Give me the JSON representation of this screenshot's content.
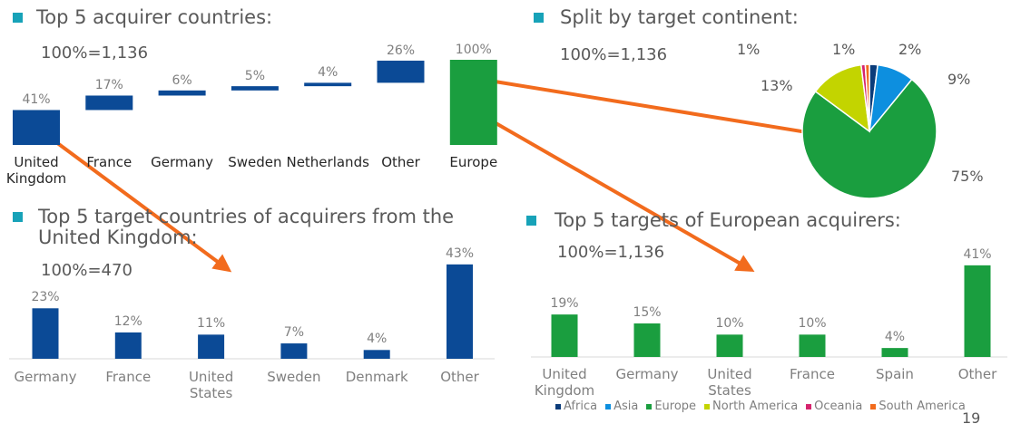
{
  "chart_data": [
    {
      "type": "waterfall",
      "title": "Top 5 acquirer countries:",
      "subtitle": "100%=1,136",
      "categories": [
        "United Kingdom",
        "France",
        "Germany",
        "Sweden",
        "Netherlands",
        "Other",
        "Europe"
      ],
      "values": [
        41,
        17,
        6,
        5,
        4,
        26,
        100
      ],
      "value_labels": [
        "41%",
        "17%",
        "6%",
        "5%",
        "4%",
        "26%",
        "100%"
      ],
      "colors": [
        "#0b4a96",
        "#0b4a96",
        "#0b4a96",
        "#0b4a96",
        "#0b4a96",
        "#0b4a96",
        "#1a9e3f"
      ],
      "ylim": [
        0,
        100
      ]
    },
    {
      "type": "pie",
      "title": "Split by target continent:",
      "subtitle": "100%=1,136",
      "categories": [
        "Africa",
        "Asia",
        "Europe",
        "North America",
        "Oceania",
        "South America"
      ],
      "values": [
        2,
        9,
        75,
        13,
        1,
        1
      ],
      "value_labels": [
        "2%",
        "9%",
        "75%",
        "13%",
        "1%",
        "1%"
      ],
      "colors": [
        "#0b3c7a",
        "#0d8fdf",
        "#1a9e3f",
        "#c3d400",
        "#d6246e",
        "#f26b1d"
      ],
      "legend": "bottom"
    },
    {
      "type": "bar",
      "title": "Top 5 target countries of acquirers from the United Kingdom:",
      "subtitle": "100%=470",
      "categories": [
        "Germany",
        "France",
        "United States",
        "Sweden",
        "Denmark",
        "Other"
      ],
      "values": [
        23,
        12,
        11,
        7,
        4,
        43
      ],
      "value_labels": [
        "23%",
        "12%",
        "11%",
        "7%",
        "4%",
        "43%"
      ],
      "color": "#0b4a96",
      "ylim": [
        0,
        45
      ]
    },
    {
      "type": "bar",
      "title": "Top 5 targets of European acquirers:",
      "subtitle": "100%=1,136",
      "categories": [
        "United Kingdom",
        "Germany",
        "United States",
        "France",
        "Spain",
        "Other"
      ],
      "values": [
        19,
        15,
        10,
        10,
        4,
        41
      ],
      "value_labels": [
        "19%",
        "15%",
        "10%",
        "10%",
        "4%",
        "41%"
      ],
      "color": "#1a9e3f",
      "ylim": [
        0,
        45
      ]
    }
  ],
  "page_number": "19"
}
